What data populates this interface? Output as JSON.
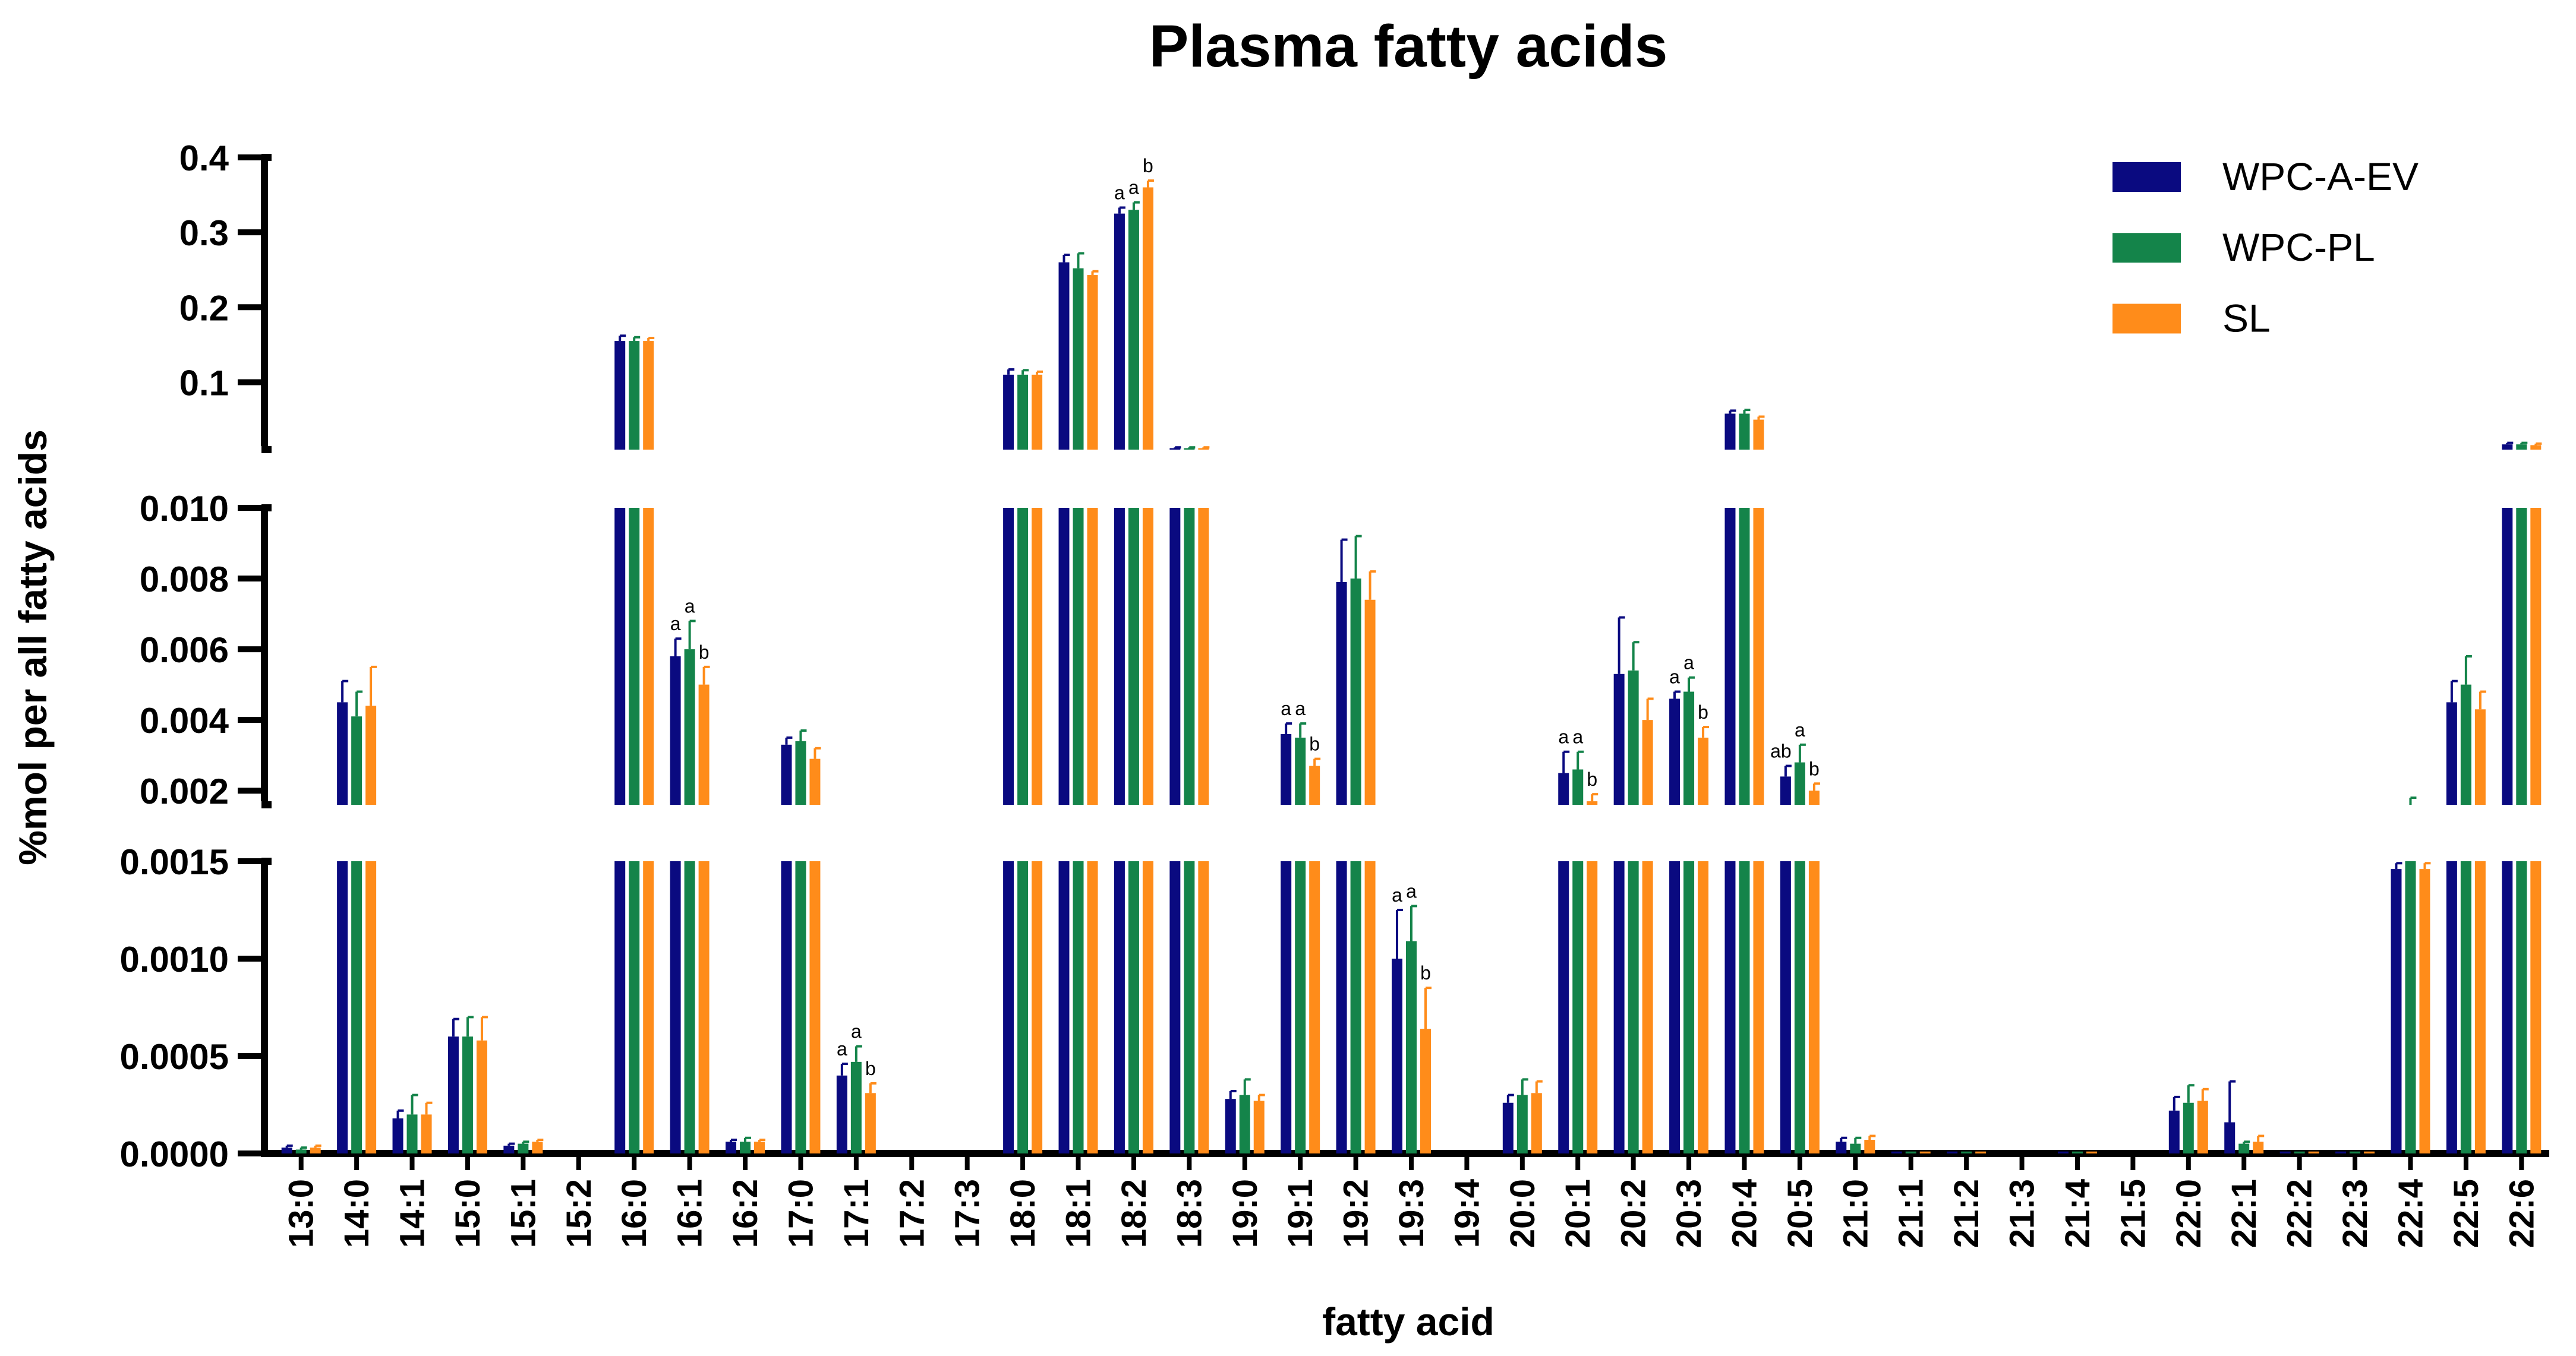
{
  "chart_data": {
    "type": "bar",
    "title": "Plasma fatty acids",
    "xlabel": "fatty acid",
    "ylabel": "%mol per all fatty acids",
    "categories": [
      "13:0",
      "14:0",
      "14:1",
      "15:0",
      "15:1",
      "15:2",
      "16:0",
      "16:1",
      "16:2",
      "17:0",
      "17:1",
      "17:2",
      "17:3",
      "18:0",
      "18:1",
      "18:2",
      "18:3",
      "19:0",
      "19:1",
      "19:2",
      "19:3",
      "19:4",
      "20:0",
      "20:1",
      "20:2",
      "20:3",
      "20:4",
      "20:5",
      "21:0",
      "21:1",
      "21:2",
      "21:3",
      "21:4",
      "21:5",
      "22:0",
      "22:1",
      "22:2",
      "22:3",
      "22:4",
      "22:5",
      "22:6"
    ],
    "axis_segments": [
      {
        "name": "lower",
        "range": [
          0,
          0.0015
        ],
        "ticks": [
          0.0,
          0.0005,
          0.001,
          0.0015
        ],
        "tick_labels": [
          "0.0000",
          "0.0005",
          "0.0010",
          "0.0015"
        ]
      },
      {
        "name": "middle",
        "range": [
          0.0016,
          0.01
        ],
        "ticks": [
          0.002,
          0.004,
          0.006,
          0.008,
          0.01
        ],
        "tick_labels": [
          "0.002",
          "0.004",
          "0.006",
          "0.008",
          "0.010"
        ]
      },
      {
        "name": "upper",
        "range": [
          0.01,
          0.4
        ],
        "ticks": [
          0.1,
          0.2,
          0.3,
          0.4
        ],
        "tick_labels": [
          "0.1",
          "0.2",
          "0.3",
          "0.4"
        ]
      }
    ],
    "legend_position": "top-right",
    "series": [
      {
        "name": "WPC-A-EV",
        "color": "#0a0a80",
        "values": [
          3e-05,
          0.0045,
          0.00018,
          0.0006,
          4e-05,
          0,
          0.155,
          0.0058,
          6e-05,
          0.0033,
          0.0004,
          0,
          0,
          0.11,
          0.26,
          0.325,
          0.012,
          0.00028,
          0.0036,
          0.0079,
          0.001,
          0,
          0.00026,
          0.0025,
          0.0053,
          0.0046,
          0.058,
          0.0024,
          6e-05,
          1e-05,
          1e-05,
          0,
          1e-05,
          0,
          0.00022,
          0.00016,
          1e-05,
          1e-05,
          0.00146,
          0.0045,
          0.017
        ],
        "errors": [
          1e-05,
          0.0006,
          4e-05,
          9e-05,
          1e-05,
          0,
          0.007,
          0.0005,
          1e-05,
          0.0002,
          6e-05,
          0,
          0,
          0.007,
          0.01,
          0.008,
          0.001,
          4e-05,
          0.0003,
          0.0012,
          0.00025,
          0,
          4e-05,
          0.0006,
          0.0016,
          0.0002,
          0.004,
          0.0003,
          2e-05,
          0,
          0,
          0,
          0,
          0,
          7e-05,
          0.00021,
          0,
          0,
          3e-05,
          0.0006,
          0.002
        ]
      },
      {
        "name": "WPC-PL",
        "color": "#14844a",
        "values": [
          2e-05,
          0.0041,
          0.0002,
          0.0006,
          5e-05,
          0,
          0.155,
          0.006,
          6e-05,
          0.0034,
          0.00047,
          0,
          0,
          0.11,
          0.252,
          0.33,
          0.012,
          0.0003,
          0.0035,
          0.008,
          0.00109,
          0,
          0.0003,
          0.0026,
          0.0054,
          0.0048,
          0.058,
          0.0028,
          5e-05,
          1e-05,
          1e-05,
          0,
          1e-05,
          0,
          0.00026,
          5e-05,
          1e-05,
          1e-05,
          0.0016,
          0.005,
          0.017
        ],
        "errors": [
          1e-05,
          0.0007,
          0.0001,
          0.0001,
          1e-05,
          0,
          0.005,
          0.0008,
          2e-05,
          0.0003,
          8e-05,
          0,
          0,
          0.006,
          0.02,
          0.01,
          0.001,
          8e-05,
          0.0004,
          0.0012,
          0.00018,
          0,
          8e-05,
          0.0005,
          0.0008,
          0.0004,
          0.005,
          0.0005,
          3e-05,
          0,
          0,
          0,
          0,
          0,
          9e-05,
          1e-05,
          0,
          0,
          0.0002,
          0.0008,
          0.002
        ]
      },
      {
        "name": "SL",
        "color": "#ff8c1a",
        "values": [
          3e-05,
          0.0044,
          0.0002,
          0.00058,
          6e-05,
          0,
          0.155,
          0.005,
          6e-05,
          0.0029,
          0.00031,
          0,
          0,
          0.11,
          0.243,
          0.36,
          0.012,
          0.00027,
          0.0027,
          0.0074,
          0.00064,
          0,
          0.00031,
          0.0017,
          0.004,
          0.0035,
          0.05,
          0.002,
          7e-05,
          1e-05,
          1e-05,
          0,
          1e-05,
          0,
          0.00027,
          6e-05,
          1e-05,
          1e-05,
          0.00146,
          0.0043,
          0.016
        ],
        "errors": [
          1e-05,
          0.0011,
          6e-05,
          0.00012,
          1e-05,
          0,
          0.004,
          0.0005,
          1e-05,
          0.0003,
          5e-05,
          0,
          0,
          0.004,
          0.005,
          0.009,
          0.001,
          3e-05,
          0.0002,
          0.0008,
          0.00021,
          0,
          6e-05,
          0.0002,
          0.0006,
          0.0003,
          0.004,
          0.0002,
          2e-05,
          0,
          0,
          0,
          0,
          0,
          6e-05,
          3e-05,
          0,
          0,
          3e-05,
          0.0005,
          0.002
        ]
      }
    ],
    "annotations": [
      {
        "category": "16:1",
        "labels": [
          "a",
          "a",
          "b"
        ]
      },
      {
        "category": "17:1",
        "labels": [
          "a",
          "a",
          "b"
        ]
      },
      {
        "category": "18:2",
        "labels": [
          "a",
          "a",
          "b"
        ]
      },
      {
        "category": "19:1",
        "labels": [
          "a",
          "a",
          "b"
        ]
      },
      {
        "category": "19:3",
        "labels": [
          "a",
          "a",
          "b"
        ]
      },
      {
        "category": "20:1",
        "labels": [
          "a",
          "a",
          "b"
        ]
      },
      {
        "category": "20:3",
        "labels": [
          "a",
          "a",
          "b"
        ]
      },
      {
        "category": "20:5",
        "labels": [
          "ab",
          "a",
          "b"
        ]
      }
    ]
  }
}
